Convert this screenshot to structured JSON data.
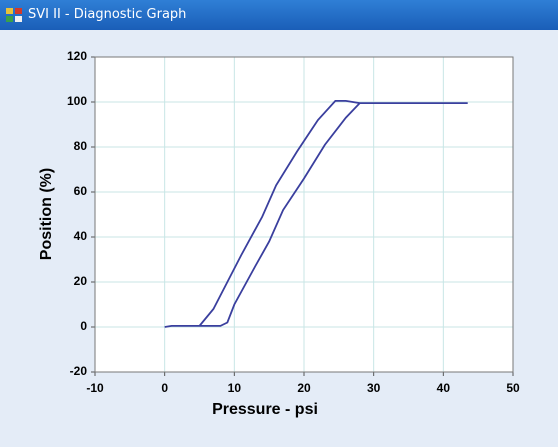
{
  "window": {
    "title": "SVI II - Diagnostic Graph"
  },
  "chart_data": {
    "type": "line",
    "x_label": "Pressure - psi",
    "y_label": "Position (%)",
    "x": [
      0,
      1,
      8,
      9,
      10,
      13,
      15,
      17,
      20,
      23,
      26,
      28,
      35,
      43.5,
      28,
      27,
      26,
      24.5,
      22,
      19,
      16,
      14,
      11,
      9,
      7,
      5
    ],
    "series": [
      {
        "color": "#3a3f9e",
        "values": [
          0,
          0.5,
          0.5,
          2,
          10,
          27,
          38,
          52,
          66,
          81,
          93,
          99.5,
          99.5,
          99.5,
          99.5,
          100,
          100.5,
          100.5,
          92,
          78,
          63,
          49,
          32,
          20,
          8,
          0.5
        ]
      }
    ],
    "xlim": [
      -10,
      50
    ],
    "xticks": [
      -10,
      0,
      10,
      20,
      30,
      40,
      50
    ],
    "ylim": [
      -20,
      120
    ],
    "yticks": [
      -20,
      0,
      20,
      40,
      60,
      80,
      100,
      120
    ],
    "grid": true
  }
}
